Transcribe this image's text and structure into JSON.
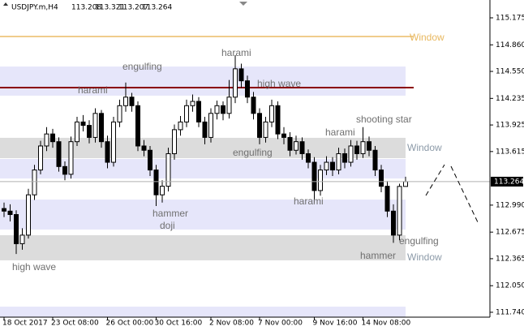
{
  "chart_data": {
    "type": "candlestick",
    "symbol": "USDJPY.m,H4",
    "ylim": [
      111.683,
      115.383
    ],
    "yticks": [
      115.175,
      {
        "value": 114.86,
        "label": "114.860"
      },
      {
        "value": 114.55,
        "label": "114.550"
      },
      114.235,
      113.925,
      113.615,
      {
        "value": 112.99,
        "label": "112.990"
      },
      112.675,
      112.365,
      {
        "value": 112.05,
        "label": "112.050"
      },
      {
        "value": 111.74,
        "label": "111.740"
      }
    ],
    "categories": [
      "18 Oct 2017",
      null,
      null,
      null,
      null,
      null,
      null,
      null,
      "23 Oct 08:00",
      null,
      null,
      null,
      null,
      null,
      null,
      null,
      null,
      "26 Oct 00:00",
      null,
      null,
      null,
      null,
      null,
      null,
      null,
      "30 Oct 16:00",
      null,
      null,
      null,
      null,
      null,
      null,
      null,
      null,
      "2 Nov 08:00",
      null,
      null,
      null,
      null,
      null,
      null,
      null,
      "7 Nov 00:00",
      null,
      null,
      null,
      null,
      null,
      null,
      null,
      null,
      "9 Nov 16:00",
      null,
      null,
      null,
      null,
      null,
      null,
      null,
      "14 Nov 08:00",
      null,
      null,
      null,
      null,
      null,
      null,
      null
    ],
    "ohlc": [
      [
        112.95,
        113.02,
        112.85,
        112.92
      ],
      [
        112.92,
        113.0,
        112.8,
        112.88
      ],
      [
        112.88,
        112.93,
        112.42,
        112.54
      ],
      [
        112.54,
        112.72,
        112.47,
        112.64
      ],
      [
        112.64,
        113.18,
        112.6,
        113.11
      ],
      [
        113.11,
        113.46,
        113.05,
        113.4
      ],
      [
        113.4,
        113.74,
        113.35,
        113.68
      ],
      [
        113.68,
        113.9,
        113.62,
        113.82
      ],
      [
        113.82,
        113.88,
        113.66,
        113.73
      ],
      [
        113.73,
        113.78,
        113.38,
        113.44
      ],
      [
        113.44,
        113.5,
        113.28,
        113.35
      ],
      [
        113.35,
        113.79,
        113.3,
        113.73
      ],
      [
        113.73,
        114.02,
        113.68,
        113.96
      ],
      [
        113.96,
        114.04,
        113.85,
        113.92
      ],
      [
        113.92,
        113.98,
        113.71,
        113.78
      ],
      [
        113.78,
        114.12,
        113.72,
        114.06
      ],
      [
        114.06,
        114.1,
        113.66,
        113.73
      ],
      [
        113.73,
        113.8,
        113.42,
        113.49
      ],
      [
        113.49,
        114.02,
        113.44,
        113.96
      ],
      [
        113.96,
        114.22,
        113.9,
        114.15
      ],
      [
        114.15,
        114.42,
        114.08,
        114.25
      ],
      [
        114.25,
        114.3,
        114.08,
        114.15
      ],
      [
        114.15,
        114.2,
        113.62,
        113.68
      ],
      [
        113.68,
        113.75,
        113.56,
        113.63
      ],
      [
        113.63,
        113.68,
        113.33,
        113.4
      ],
      [
        113.4,
        113.46,
        112.98,
        113.11
      ],
      [
        113.11,
        113.28,
        113.02,
        113.21
      ],
      [
        113.21,
        113.66,
        113.15,
        113.59
      ],
      [
        113.59,
        113.93,
        113.52,
        113.87
      ],
      [
        113.87,
        114.03,
        113.8,
        113.96
      ],
      [
        113.96,
        114.22,
        113.9,
        114.15
      ],
      [
        114.15,
        114.28,
        114.08,
        114.2
      ],
      [
        114.2,
        114.25,
        113.9,
        113.96
      ],
      [
        113.96,
        114.02,
        113.7,
        113.78
      ],
      [
        113.78,
        114.12,
        113.72,
        114.06
      ],
      [
        114.06,
        114.21,
        113.99,
        114.15
      ],
      [
        114.15,
        114.2,
        113.98,
        114.06
      ],
      [
        114.06,
        114.45,
        114.0,
        114.25
      ],
      [
        114.25,
        114.74,
        114.18,
        114.58
      ],
      [
        114.58,
        114.64,
        114.36,
        114.44
      ],
      [
        114.44,
        114.5,
        114.18,
        114.25
      ],
      [
        114.25,
        114.31,
        113.99,
        114.06
      ],
      [
        114.06,
        114.12,
        113.7,
        113.78
      ],
      [
        113.78,
        114.02,
        113.72,
        113.96
      ],
      [
        113.96,
        114.22,
        113.9,
        114.15
      ],
      [
        114.15,
        114.2,
        113.76,
        113.82
      ],
      [
        113.82,
        113.9,
        113.7,
        113.78
      ],
      [
        113.78,
        113.84,
        113.56,
        113.63
      ],
      [
        113.63,
        113.8,
        113.58,
        113.73
      ],
      [
        113.73,
        113.78,
        113.52,
        113.59
      ],
      [
        113.59,
        113.64,
        113.42,
        113.49
      ],
      [
        113.49,
        113.55,
        113.02,
        113.16
      ],
      [
        113.16,
        113.46,
        113.1,
        113.4
      ],
      [
        113.4,
        113.56,
        113.34,
        113.49
      ],
      [
        113.49,
        113.55,
        113.33,
        113.4
      ],
      [
        113.4,
        113.66,
        113.35,
        113.59
      ],
      [
        113.59,
        113.65,
        113.42,
        113.49
      ],
      [
        113.49,
        113.75,
        113.44,
        113.68
      ],
      [
        113.68,
        113.74,
        113.52,
        113.59
      ],
      [
        113.59,
        113.9,
        113.54,
        113.73
      ],
      [
        113.73,
        113.79,
        113.56,
        113.63
      ],
      [
        113.63,
        113.68,
        113.33,
        113.4
      ],
      [
        113.4,
        113.46,
        113.14,
        113.21
      ],
      [
        113.21,
        113.27,
        112.85,
        112.92
      ],
      [
        112.92,
        113.0,
        112.55,
        112.64
      ],
      [
        112.64,
        113.24,
        112.58,
        113.208
      ],
      [
        113.208,
        113.321,
        113.207,
        113.264
      ]
    ],
    "zones": [
      {
        "top": 114.607,
        "bottom": 114.267,
        "color": "#e6e6fa"
      },
      {
        "top": 113.775,
        "bottom": 113.538,
        "color": "#dcdcdc"
      },
      {
        "top": 113.528,
        "bottom": 113.301,
        "color": "#e6e6fa"
      },
      {
        "top": 113.055,
        "bottom": 112.705,
        "color": "#e6e6fa"
      },
      {
        "top": 112.639,
        "bottom": 112.346,
        "color": "#dcdcdc"
      },
      {
        "top": 111.806,
        "bottom": 111.683,
        "color": "#e6e6fa"
      }
    ],
    "levels": [
      {
        "value": 114.957,
        "color": "#f0cc8c"
      },
      {
        "value": 114.361,
        "color": "#8b0000"
      }
    ],
    "annotations": [
      {
        "text": "Window",
        "color": "#e8b860"
      },
      {
        "text": "engulfing",
        "color": "#707070"
      },
      {
        "text": "harami",
        "color": "#707070"
      },
      {
        "text": "high wave",
        "color": "#707070"
      },
      {
        "text": "harami",
        "color": "#707070"
      },
      {
        "text": "shooting star",
        "color": "#707070"
      },
      {
        "text": "harami",
        "color": "#707070"
      },
      {
        "text": "engulfing",
        "color": "#707070"
      },
      {
        "text": "Window",
        "color": "#8c9aa8"
      },
      {
        "text": "harami",
        "color": "#707070"
      },
      {
        "text": "hammer",
        "color": "#707070"
      },
      {
        "text": "doji",
        "color": "#707070"
      },
      {
        "text": "engulfing",
        "color": "#707070"
      },
      {
        "text": "hammer",
        "color": "#707070"
      },
      {
        "text": "Window",
        "color": "#8c9aa8"
      },
      {
        "text": "high wave",
        "color": "#707070"
      }
    ]
  }
}
